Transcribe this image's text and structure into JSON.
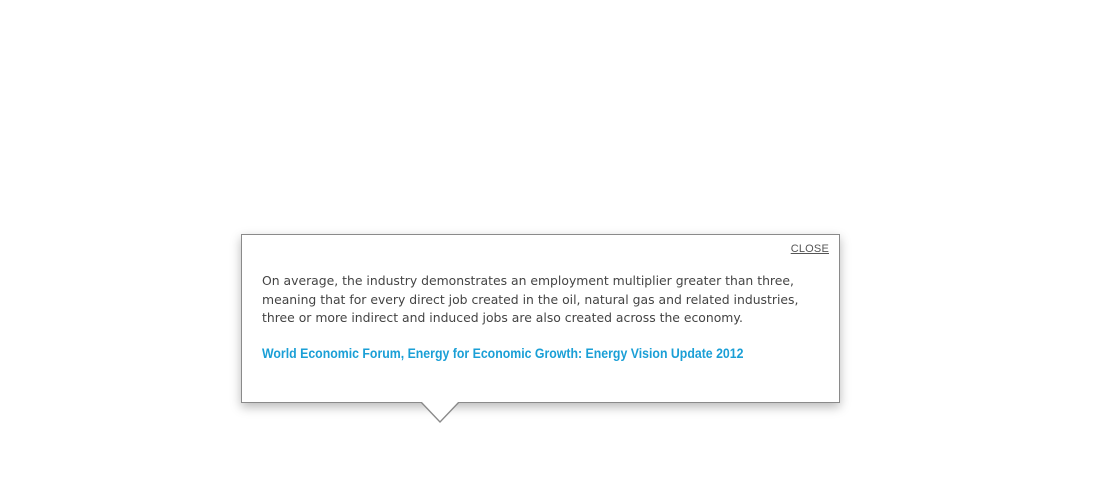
{
  "popover": {
    "close_label": "CLOSE",
    "body_text": "On average, the industry demonstrates an employment multiplier greater than three, meaning that for every direct job created in the oil, natural gas and related industries, three or more indirect and induced jobs are also created across the economy.",
    "source_link_text": "World Economic Forum, Energy for Economic Growth: Energy Vision Update 2012"
  },
  "colors": {
    "link": "#1a9fd6",
    "body_text": "#444444",
    "border": "#8a8a8a",
    "background": "#ffffff"
  }
}
